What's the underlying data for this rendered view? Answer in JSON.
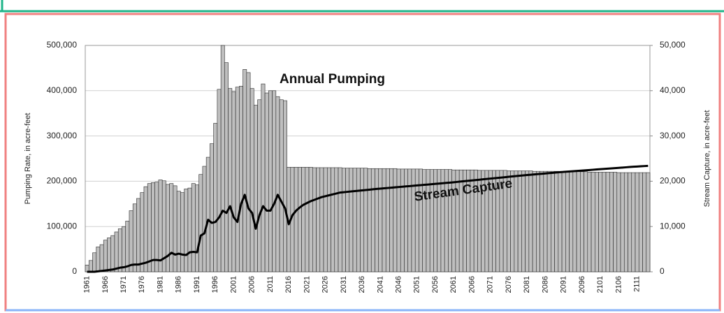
{
  "chart_data": {
    "type": "bar",
    "ylabel": "Pumping Rate, in acre-feet",
    "y2label": "Stream Capture, in acre-feet",
    "ylim": [
      0,
      500000
    ],
    "yticks": [
      0,
      {
        "value": 100000,
        "label": "100,000"
      },
      {
        "value": 200000,
        "label": "200,000"
      },
      {
        "value": 300000,
        "label": "300,000"
      },
      {
        "value": 400000,
        "label": "400,000"
      },
      {
        "value": 500000,
        "label": "500,000"
      }
    ],
    "y2lim": [
      0,
      50000
    ],
    "y2ticks": [
      0,
      {
        "value": 10000,
        "label": "10,000"
      },
      {
        "value": 20000,
        "label": "20,000"
      },
      {
        "value": 30000,
        "label": "30,000"
      },
      {
        "value": 40000,
        "label": "40,000"
      },
      {
        "value": 50000,
        "label": "50,000"
      }
    ],
    "grid": true,
    "categories": [
      "1961",
      null,
      null,
      null,
      null,
      "1966",
      null,
      null,
      null,
      null,
      "1971",
      null,
      null,
      null,
      null,
      "1976",
      null,
      null,
      null,
      null,
      "1981",
      null,
      null,
      null,
      null,
      "1986",
      null,
      null,
      null,
      null,
      "1991",
      null,
      null,
      null,
      null,
      "1996",
      null,
      null,
      null,
      null,
      "2001",
      null,
      null,
      null,
      null,
      "2006",
      null,
      null,
      null,
      null,
      "2011",
      null,
      null,
      null,
      null,
      "2016",
      null,
      null,
      null,
      null,
      "2021",
      null,
      null,
      null,
      null,
      "2026",
      null,
      null,
      null,
      null,
      "2031",
      null,
      null,
      null,
      null,
      "2036",
      null,
      null,
      null,
      null,
      "2041",
      null,
      null,
      null,
      null,
      "2046",
      null,
      null,
      null,
      null,
      "2051",
      null,
      null,
      null,
      null,
      "2056",
      null,
      null,
      null,
      null,
      "2061",
      null,
      null,
      null,
      null,
      "2066",
      null,
      null,
      null,
      null,
      "2071",
      null,
      null,
      null,
      null,
      "2076",
      null,
      null,
      null,
      null,
      "2081",
      null,
      null,
      null,
      null,
      "2086",
      null,
      null,
      null,
      null,
      "2091",
      null,
      null,
      null,
      null,
      "2096",
      null,
      null,
      null,
      null,
      "2101",
      null,
      null,
      null,
      null,
      "2106",
      null,
      null,
      null,
      null,
      "2111",
      null,
      null,
      null
    ],
    "series": [
      {
        "name": "Annual Pumping",
        "type": "bar",
        "color": "#bfbfbf",
        "values": [
          15000,
          25000,
          42000,
          55000,
          60000,
          70000,
          75000,
          80000,
          88000,
          95000,
          100000,
          112000,
          135000,
          150000,
          162000,
          175000,
          188000,
          195000,
          197000,
          198000,
          203000,
          201000,
          193000,
          195000,
          190000,
          178000,
          175000,
          183000,
          185000,
          195000,
          192000,
          215000,
          233000,
          253000,
          283000,
          328000,
          403000,
          500000,
          462000,
          405000,
          398000,
          408000,
          410000,
          447000,
          440000,
          405000,
          368000,
          380000,
          415000,
          395000,
          400000,
          400000,
          387000,
          380000,
          378000,
          231000,
          231000,
          231000,
          231000,
          231000,
          231000,
          231000,
          230000,
          230000,
          230000,
          230000,
          230000,
          230000,
          230000,
          230000,
          229000,
          229000,
          229000,
          229000,
          229000,
          229000,
          229000,
          228000,
          228000,
          228000,
          228000,
          228000,
          228000,
          228000,
          228000,
          227000,
          227000,
          227000,
          227000,
          227000,
          227000,
          227000,
          226000,
          226000,
          226000,
          226000,
          226000,
          226000,
          226000,
          226000,
          225000,
          225000,
          225000,
          225000,
          225000,
          225000,
          225000,
          224000,
          224000,
          224000,
          224000,
          224000,
          224000,
          224000,
          224000,
          223000,
          223000,
          223000,
          223000,
          223000,
          223000,
          223000,
          222000,
          222000,
          222000,
          222000,
          222000,
          222000,
          222000,
          222000,
          221000,
          221000,
          221000,
          221000,
          221000,
          221000,
          221000,
          220000,
          220000,
          220000,
          220000,
          220000,
          220000,
          220000,
          220000,
          219000,
          219000,
          219000,
          219000,
          219000,
          219000,
          219000,
          219000,
          219000
        ]
      },
      {
        "name": "Stream Capture",
        "type": "line",
        "axis": "y2",
        "color": "#000000",
        "values": [
          0,
          0,
          0,
          100,
          200,
          300,
          400,
          500,
          700,
          900,
          1000,
          1200,
          1500,
          1600,
          1600,
          1800,
          2000,
          2300,
          2600,
          2600,
          2500,
          3000,
          3500,
          4200,
          3800,
          4000,
          3800,
          3700,
          4300,
          4400,
          4300,
          8000,
          8500,
          11500,
          10800,
          11000,
          12000,
          13500,
          13000,
          14500,
          12000,
          11000,
          15000,
          17000,
          14000,
          13000,
          9500,
          12500,
          14500,
          13500,
          13500,
          15000,
          17000,
          15500,
          14000,
          10500,
          12500,
          13500,
          14200,
          14800,
          15200,
          15600,
          15900,
          16200,
          16500,
          16700,
          16900,
          17100,
          17300,
          17500,
          17580,
          17660,
          17740,
          17820,
          17900,
          17980,
          18060,
          18140,
          18220,
          18300,
          18370,
          18440,
          18510,
          18580,
          18650,
          18720,
          18790,
          18860,
          18930,
          19000,
          19070,
          19140,
          19210,
          19280,
          19350,
          19420,
          19490,
          19560,
          19630,
          19700,
          19780,
          19860,
          19940,
          20020,
          20100,
          20180,
          20260,
          20340,
          20420,
          20500,
          20580,
          20660,
          20740,
          20820,
          20900,
          20980,
          21060,
          21140,
          21220,
          21300,
          21370,
          21440,
          21510,
          21580,
          21650,
          21720,
          21790,
          21860,
          21930,
          22000,
          22060,
          22120,
          22180,
          22240,
          22300,
          22360,
          22420,
          22480,
          22540,
          22600,
          22660,
          22720,
          22780,
          22840,
          22900,
          22960,
          23020,
          23080,
          23140,
          23200,
          23250,
          23300,
          23350,
          23400
        ]
      }
    ]
  }
}
